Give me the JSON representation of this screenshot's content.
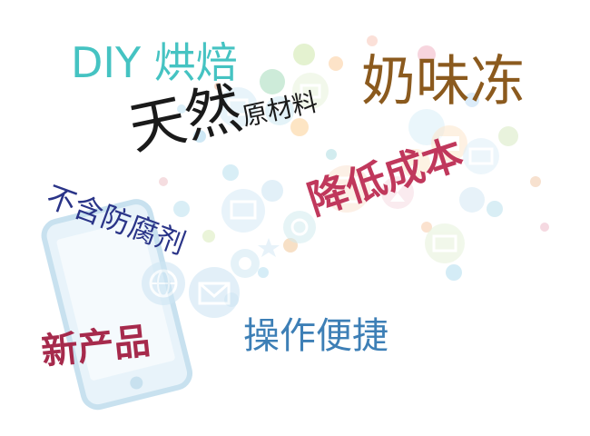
{
  "words": {
    "diy_baking": "DIY 烘焙",
    "milk_jelly": "奶味冻",
    "natural": "天然",
    "raw_materials": "原材料",
    "no_preservatives": "不含防腐剂",
    "lower_cost": "降低成本",
    "easy_operation": "操作便捷",
    "new_product": "新产品"
  },
  "colors": {
    "diy": "#45c3c2",
    "milk": "#8b5a1e",
    "natural": "#1a1a1a",
    "no_preservatives": "#2a3488",
    "lower_cost": "#c0385c",
    "easy": "#3d7fb6",
    "new_product": "#a62a4c"
  },
  "background_icons": [
    "phone-icon",
    "globe-icon",
    "mail-icon",
    "chat-icon",
    "music-icon",
    "camera-icon",
    "chart-icon",
    "user-icon",
    "monitor-icon",
    "cart-icon",
    "power-icon",
    "hourglass-icon",
    "folder-icon",
    "book-icon",
    "cloud-icon"
  ]
}
